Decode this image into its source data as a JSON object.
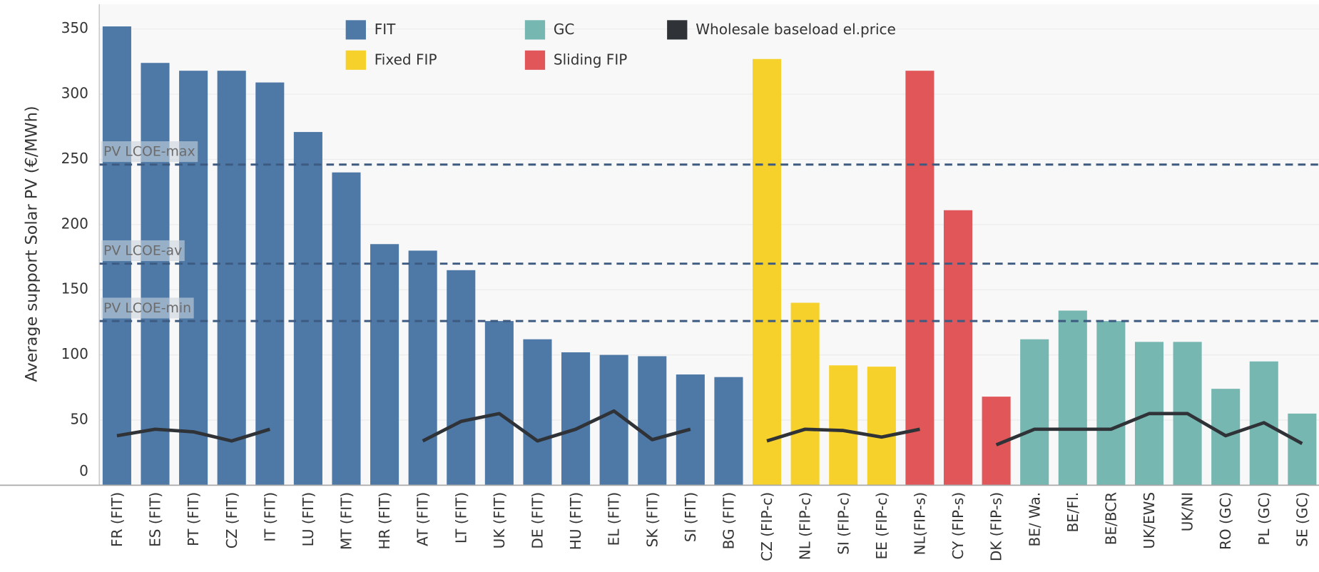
{
  "chart_data": {
    "type": "bar",
    "y_label": "Average support Solar PV (€/MWh)",
    "categories": [
      "FR (FIT)",
      "ES (FIT)",
      "PT (FIT)",
      "CZ (FIT)",
      "IT (FIT)",
      "LU (FIT)",
      "MT (FIT)",
      "HR (FIT)",
      "AT (FIT)",
      "LT (FIT)",
      "UK (FIT)",
      "DE (FIT)",
      "HU (FIT)",
      "EL (FIT)",
      "SK (FIT)",
      "SI (FIT)",
      "BG (FIT)",
      "CZ (FIP-c)",
      "NL (FIP-c)",
      "SI (FIP-c)",
      "EE (FIP-c)",
      "NL(FIP-s)",
      "CY (FIP-s)",
      "DK (FIP-s)",
      "BE/ Wa.",
      "BE/Fl.",
      "BE/BCR",
      "UK/EWS",
      "UK/NI",
      "RO (GC)",
      "PL (GC)",
      "SE (GC)"
    ],
    "series": [
      {
        "name": "FIT",
        "color": "#4e79a7",
        "type": "bar",
        "values": [
          352,
          324,
          318,
          318,
          309,
          271,
          240,
          185,
          180,
          165,
          126,
          112,
          102,
          100,
          99,
          85,
          83,
          null,
          null,
          null,
          null,
          null,
          null,
          null,
          null,
          null,
          null,
          null,
          null,
          null,
          null,
          null
        ]
      },
      {
        "name": "GC",
        "color": "#76b7b2",
        "type": "bar",
        "values": [
          null,
          null,
          null,
          null,
          null,
          null,
          null,
          null,
          null,
          null,
          null,
          null,
          null,
          null,
          null,
          null,
          null,
          null,
          null,
          null,
          null,
          null,
          null,
          null,
          112,
          134,
          126,
          110,
          110,
          74,
          95,
          55
        ]
      },
      {
        "name": "Wholesale baseload el.price",
        "color": "#2f3236",
        "type": "line",
        "values": [
          38,
          43,
          41,
          34,
          43,
          null,
          null,
          null,
          34,
          49,
          55,
          34,
          43,
          57,
          35,
          43,
          null,
          34,
          43,
          42,
          37,
          43,
          null,
          31,
          43,
          43,
          43,
          55,
          55,
          38,
          48,
          32
        ]
      },
      {
        "name": "Fixed FIP",
        "color": "#f6d12b",
        "type": "bar",
        "values": [
          null,
          null,
          null,
          null,
          null,
          null,
          null,
          null,
          null,
          null,
          null,
          null,
          null,
          null,
          null,
          null,
          null,
          327,
          140,
          92,
          91,
          null,
          null,
          null,
          null,
          null,
          null,
          null,
          null,
          null,
          null,
          null
        ]
      },
      {
        "name": "Sliding FIP",
        "color": "#e15759",
        "type": "bar",
        "values": [
          null,
          null,
          null,
          null,
          null,
          null,
          null,
          null,
          null,
          null,
          null,
          null,
          null,
          null,
          null,
          null,
          null,
          null,
          null,
          null,
          null,
          318,
          211,
          68,
          null,
          null,
          null,
          null,
          null,
          null,
          null,
          null
        ]
      }
    ],
    "reference_lines": [
      {
        "label": "PV LCOE-max",
        "value": 246
      },
      {
        "label": "PV LCOE-av",
        "value": 170
      },
      {
        "label": "PV LCOE-min",
        "value": 126
      }
    ],
    "ylim": [
      0,
      372
    ],
    "yticks": [
      0,
      50,
      100,
      150,
      200,
      250,
      300,
      350
    ],
    "grid": true
  }
}
